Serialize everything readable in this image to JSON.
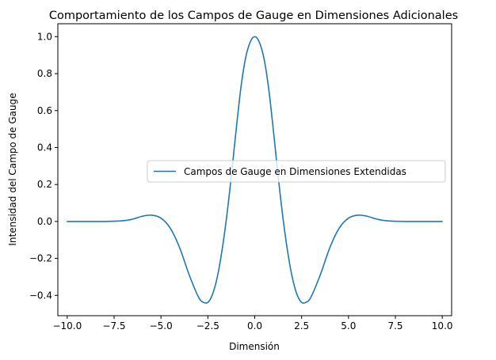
{
  "chart_data": {
    "type": "line",
    "title": "Comportamiento de los Campos de Gauge en Dimensiones Adicionales",
    "xlabel": "Dimensión",
    "ylabel": "Intensidad del Campo de Gauge",
    "xlim": [
      -10.5,
      10.5
    ],
    "ylim": [
      -0.51,
      1.07
    ],
    "xticks": [
      -10.0,
      -7.5,
      -5.0,
      -2.5,
      0.0,
      2.5,
      5.0,
      7.5,
      10.0
    ],
    "xtick_labels": [
      "−10.0",
      "−7.5",
      "−5.0",
      "−2.5",
      "0.0",
      "2.5",
      "5.0",
      "7.5",
      "10.0"
    ],
    "yticks": [
      -0.4,
      -0.2,
      0.0,
      0.2,
      0.4,
      0.6,
      0.8,
      1.0
    ],
    "ytick_labels": [
      "−0.4",
      "−0.2",
      "0.0",
      "0.2",
      "0.4",
      "0.6",
      "0.8",
      "1.0"
    ],
    "grid": false,
    "legend_position": "center-right",
    "series": [
      {
        "name": "Campos de Gauge en Dimensiones Extendidas",
        "color": "#1f77b4",
        "x": [
          -10.0,
          -8.0,
          -7.0,
          -6.5,
          -6.0,
          -5.5,
          -5.0,
          -4.5,
          -4.0,
          -3.5,
          -3.0,
          -2.75,
          -2.5,
          -2.25,
          -2.0,
          -1.75,
          -1.5,
          -1.25,
          -1.0,
          -0.75,
          -0.5,
          -0.25,
          0.0,
          0.25,
          0.5,
          0.75,
          1.0,
          1.25,
          1.5,
          1.75,
          2.0,
          2.25,
          2.5,
          2.75,
          3.0,
          3.5,
          4.0,
          4.5,
          5.0,
          5.5,
          6.0,
          6.5,
          7.0,
          8.0,
          10.0
        ],
        "y": [
          0.0,
          0.0,
          0.004,
          0.013,
          0.028,
          0.034,
          0.018,
          -0.037,
          -0.143,
          -0.288,
          -0.409,
          -0.437,
          -0.438,
          -0.394,
          -0.302,
          -0.16,
          0.023,
          0.244,
          0.487,
          0.714,
          0.878,
          0.969,
          1.0,
          0.969,
          0.878,
          0.714,
          0.487,
          0.244,
          0.023,
          -0.16,
          -0.302,
          -0.394,
          -0.438,
          -0.437,
          -0.409,
          -0.288,
          -0.143,
          -0.037,
          0.018,
          0.034,
          0.028,
          0.013,
          0.004,
          0.0,
          0.0
        ]
      }
    ]
  }
}
